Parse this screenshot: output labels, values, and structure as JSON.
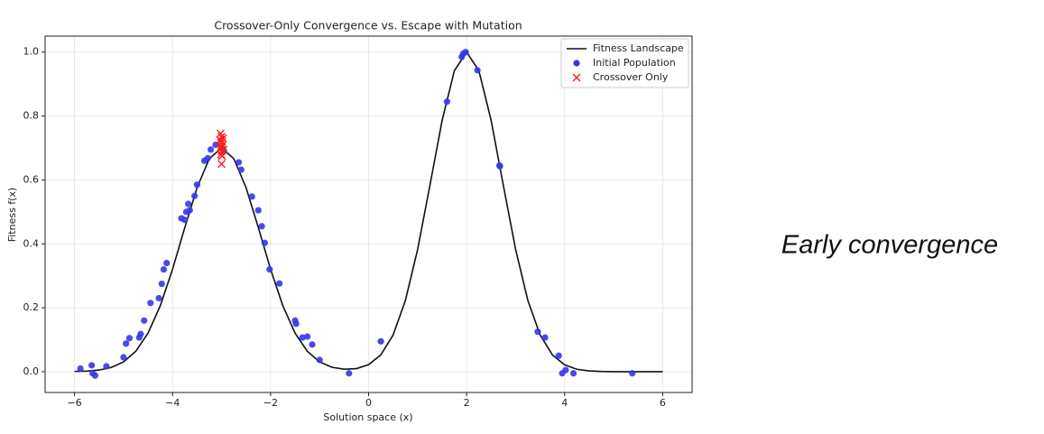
{
  "chart_data": {
    "type": "line",
    "title": "Crossover-Only Convergence vs. Escape with Mutation",
    "xlabel": "Solution space (x)",
    "ylabel": "Fitness f(x)",
    "xlim": [
      -6.6,
      6.6
    ],
    "ylim": [
      -0.065,
      1.05
    ],
    "xticks": [
      {
        "value": -6,
        "label": "−6"
      },
      {
        "value": -4,
        "label": "−4"
      },
      {
        "value": -2,
        "label": "−2"
      },
      0,
      2,
      4,
      6
    ],
    "yticks": [
      {
        "value": 0,
        "label": "0.0"
      },
      0.2,
      0.4,
      0.6,
      0.8,
      {
        "value": 1,
        "label": "1.0"
      }
    ],
    "grid": true,
    "legend": "upper right",
    "series": [
      {
        "name": "Fitness Landscape",
        "type": "line",
        "color": "#111111",
        "x": [
          -6,
          -5.75,
          -5.5,
          -5.25,
          -5,
          -4.75,
          -4.5,
          -4.25,
          -4,
          -3.75,
          -3.5,
          -3.25,
          -3,
          -2.75,
          -2.5,
          -2.25,
          -2,
          -1.75,
          -1.5,
          -1.25,
          -1,
          -0.75,
          -0.5,
          -0.25,
          0,
          0.25,
          0.5,
          0.75,
          1,
          1.25,
          1.5,
          1.75,
          2,
          2.25,
          2.5,
          2.75,
          3,
          3.25,
          3.5,
          3.75,
          4,
          4.25,
          4.5,
          4.75,
          5,
          5.25,
          5.5,
          5.75,
          6
        ],
        "values": [
          0.001,
          0.0019,
          0.0053,
          0.0134,
          0.0307,
          0.064,
          0.1207,
          0.2066,
          0.3205,
          0.4511,
          0.5758,
          0.6666,
          0.7,
          0.6666,
          0.5758,
          0.4511,
          0.3205,
          0.2066,
          0.1207,
          0.064,
          0.0307,
          0.0141,
          0.0078,
          0.0096,
          0.022,
          0.0528,
          0.115,
          0.2226,
          0.3823,
          0.5822,
          0.7863,
          0.9417,
          1,
          0.9417,
          0.7863,
          0.5822,
          0.3823,
          0.2226,
          0.115,
          0.0526,
          0.0214,
          0.0077,
          0.0025,
          0.0007,
          0.0002,
          0,
          0,
          0,
          0
        ]
      },
      {
        "name": "Initial Population",
        "type": "scatter",
        "marker": "circle",
        "color": "#3535ee",
        "x": [
          -5.88,
          -5.65,
          -5.63,
          -5.58,
          -5.35,
          -5.0,
          -4.95,
          -4.88,
          -4.68,
          -4.65,
          -4.58,
          -4.45,
          -4.28,
          -4.22,
          -4.18,
          -4.12,
          -3.82,
          -3.75,
          -3.72,
          -3.68,
          -3.65,
          -3.55,
          -3.5,
          -3.35,
          -3.28,
          -3.22,
          -3.12,
          -3.0,
          -2.95,
          -2.65,
          -2.6,
          -2.38,
          -2.25,
          -2.18,
          -2.12,
          -2.02,
          -1.82,
          -1.5,
          -1.48,
          -1.35,
          -1.25,
          -1.15,
          -1.0,
          -0.4,
          0.25,
          1.6,
          1.9,
          1.93,
          1.98,
          2.22,
          2.67,
          2.68,
          3.45,
          3.6,
          3.88,
          3.95,
          4.02,
          4.18,
          5.38
        ],
        "values": [
          0.01,
          0.02,
          -0.005,
          -0.012,
          0.017,
          0.045,
          0.088,
          0.105,
          0.107,
          0.118,
          0.16,
          0.215,
          0.23,
          0.275,
          0.32,
          0.34,
          0.48,
          0.475,
          0.5,
          0.525,
          0.505,
          0.55,
          0.585,
          0.66,
          0.668,
          0.695,
          0.71,
          0.7,
          0.69,
          0.655,
          0.632,
          0.548,
          0.505,
          0.455,
          0.403,
          0.32,
          0.276,
          0.16,
          0.15,
          0.107,
          0.11,
          0.085,
          0.037,
          -0.005,
          0.095,
          0.845,
          0.985,
          0.995,
          1.0,
          0.943,
          0.645,
          0.643,
          0.125,
          0.107,
          0.05,
          -0.005,
          0.005,
          -0.005,
          -0.005
        ]
      },
      {
        "name": "Crossover Only",
        "type": "scatter",
        "marker": "x",
        "color": "#ff1a1a",
        "x": [
          -3.02,
          -3.0,
          -2.97,
          -3.03,
          -2.99,
          -3.01,
          -2.98,
          -3.0,
          -3.02,
          -2.96,
          -3.0,
          -3.01,
          -2.99,
          -3.0
        ],
        "values": [
          0.745,
          0.735,
          0.73,
          0.725,
          0.72,
          0.715,
          0.71,
          0.705,
          0.7,
          0.695,
          0.69,
          0.68,
          0.675,
          0.65
        ]
      }
    ]
  },
  "caption": "Early convergence"
}
